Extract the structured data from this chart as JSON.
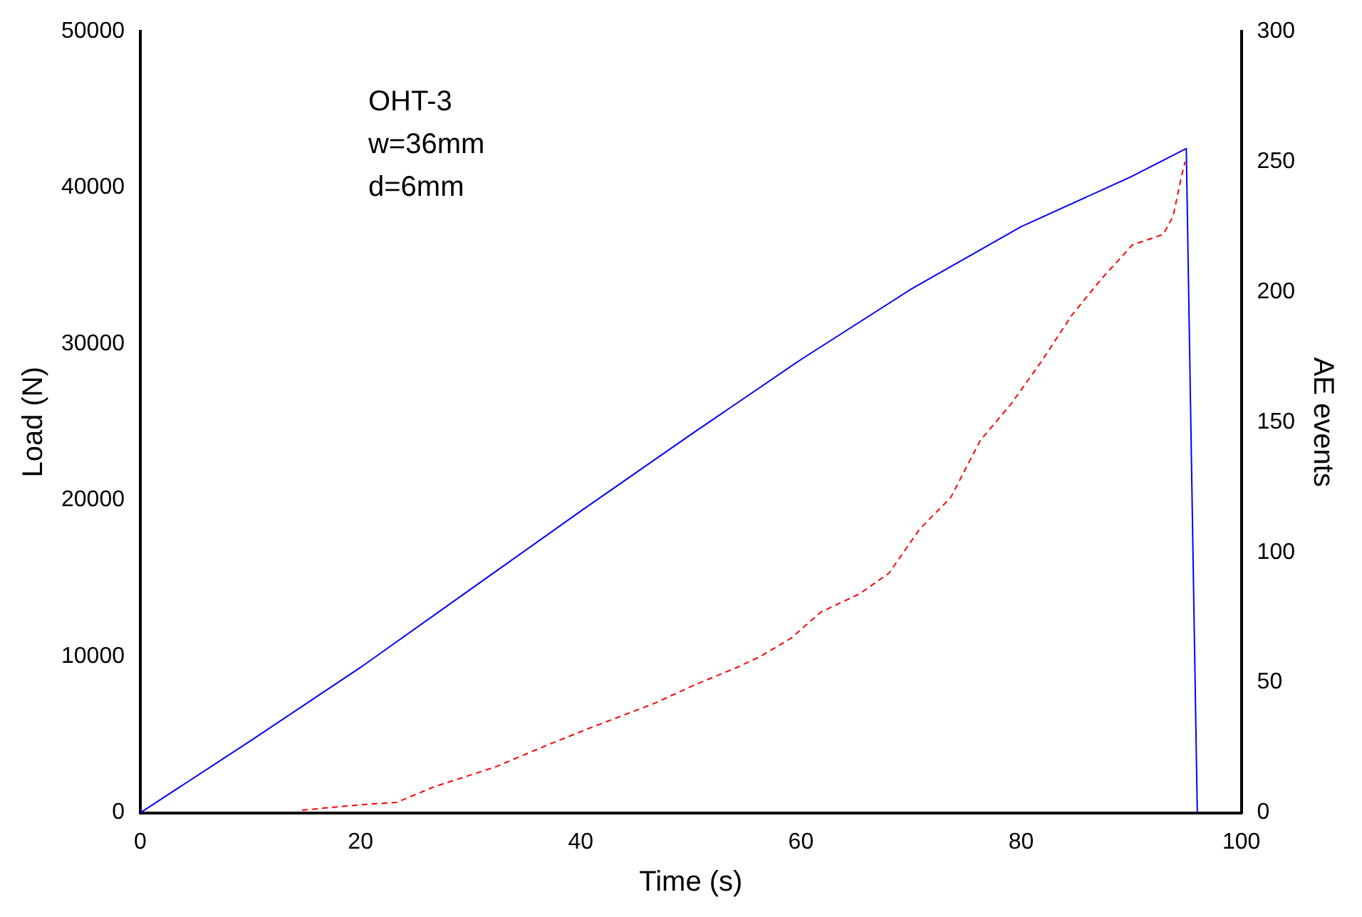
{
  "chart_data": {
    "type": "line",
    "xlabel": "Time (s)",
    "ylabel": "Load (N)",
    "y2label": "AE events",
    "annotations": [
      "OHT-3",
      "w=36mm",
      "d=6mm"
    ],
    "xlim": [
      0,
      100
    ],
    "xticks": [
      0,
      20,
      40,
      60,
      80,
      100
    ],
    "ylim": [
      0,
      50000
    ],
    "yticks": [
      0,
      10000,
      20000,
      30000,
      40000,
      50000
    ],
    "y2lim": [
      0,
      300
    ],
    "y2ticks": [
      0,
      50,
      100,
      150,
      200,
      250,
      300
    ],
    "grid": false,
    "legend": false,
    "marker": "none",
    "series": [
      {
        "color": "#0000ff",
        "line_style": "solid",
        "x": [
          0,
          10,
          20,
          30,
          40,
          50,
          60,
          70,
          80,
          90,
          95,
          96
        ],
        "values": [
          0,
          4600,
          9300,
          14300,
          19300,
          24200,
          29000,
          33500,
          37500,
          40700,
          42500,
          0
        ]
      },
      {
        "color": "#ff0000",
        "line_style": "dashed",
        "axis": "y2",
        "x": [
          14.7,
          19.8,
          23.3,
          26.7,
          32.2,
          36.4,
          40.5,
          46.7,
          50.3,
          54.3,
          56.3,
          59.1,
          61.8,
          65.3,
          68,
          70.8,
          73.6,
          76.3,
          79.1,
          81.8,
          84.6,
          87.3,
          90.1,
          92.9,
          93.8,
          94.6,
          94.9
        ],
        "values": [
          1,
          3,
          4,
          10,
          17.5,
          25,
          32,
          42,
          49,
          56,
          60,
          67,
          77,
          84,
          92,
          109,
          121,
          143,
          157,
          173,
          191,
          205,
          218,
          222,
          229,
          245,
          250
        ]
      }
    ]
  }
}
